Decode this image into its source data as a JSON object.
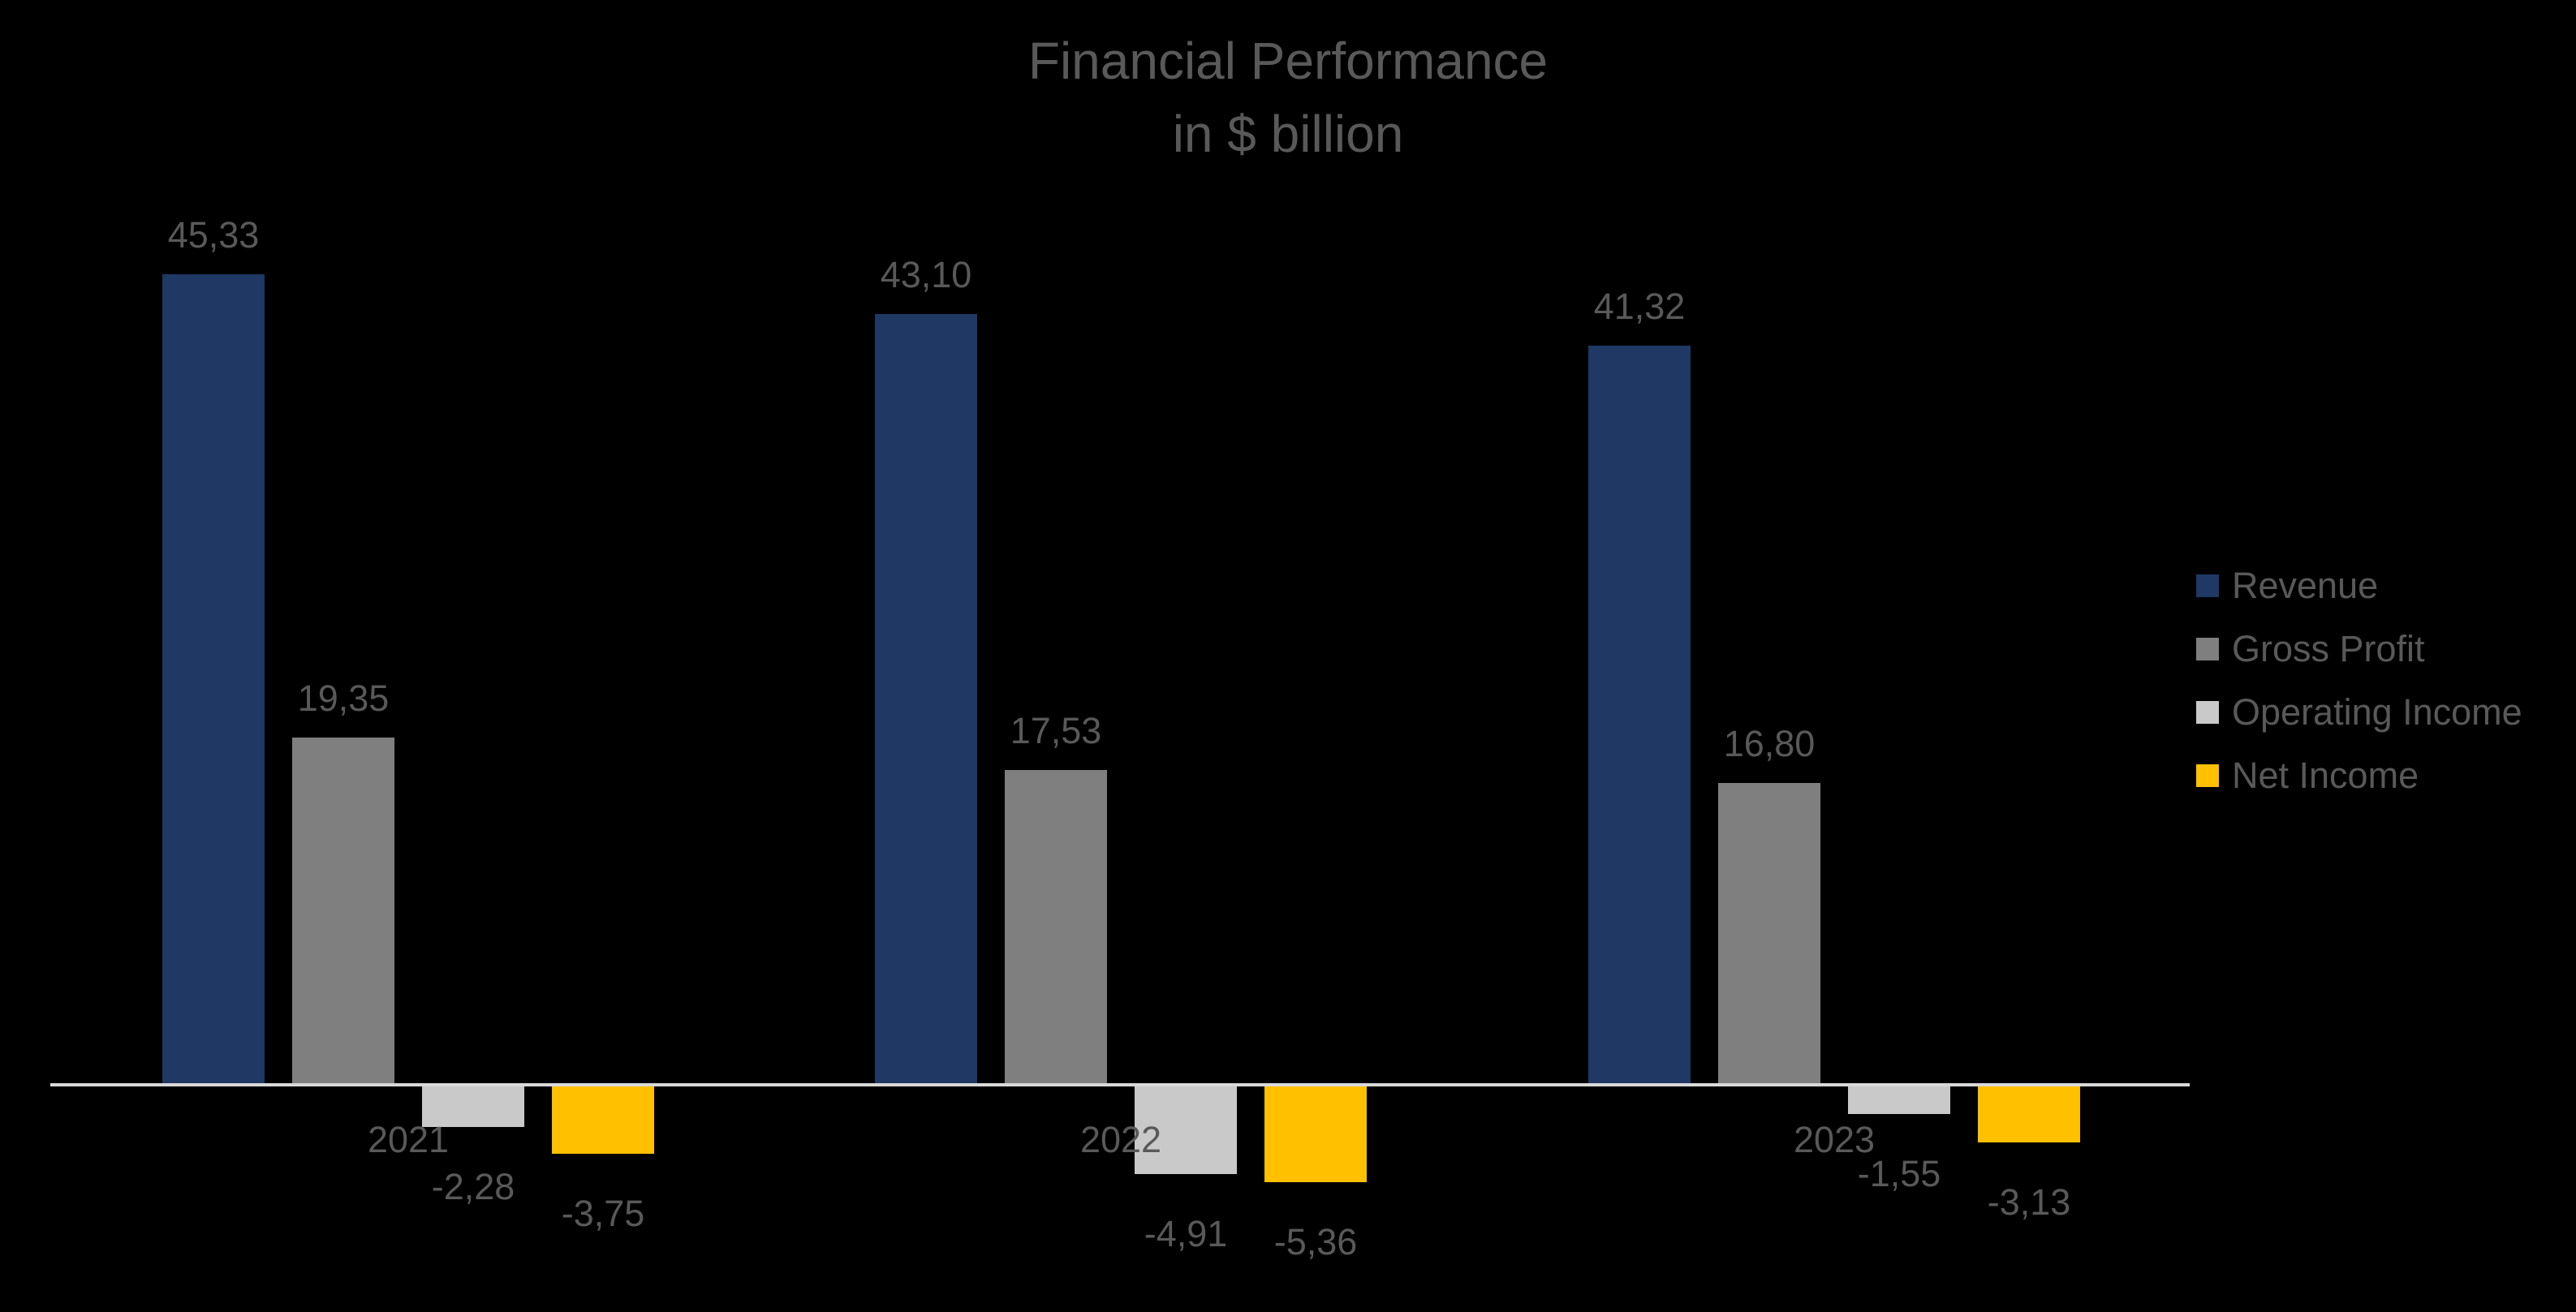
{
  "title": {
    "line1": "Financial Performance",
    "line2": "in $ billion"
  },
  "colors": {
    "background": "#000000",
    "text": "#595959",
    "axis_line": "#D9D9D9"
  },
  "chart_data": {
    "type": "bar",
    "title": "Financial Performance",
    "subtitle": "in $ billion",
    "categories": [
      "2021",
      "2022",
      "2023"
    ],
    "series": [
      {
        "name": "Revenue",
        "color": "#1F3864",
        "values": [
          45.33,
          43.1,
          41.32
        ]
      },
      {
        "name": "Gross Profit",
        "color": "#7F7F7F",
        "values": [
          19.35,
          17.53,
          16.8
        ]
      },
      {
        "name": "Operating Income",
        "color": "#C9C9C9",
        "values": [
          -2.28,
          -4.91,
          -1.55
        ]
      },
      {
        "name": "Net Income",
        "color": "#FFC000",
        "values": [
          -3.75,
          -5.36,
          -3.13
        ]
      }
    ],
    "data_labels": {
      "2021": [
        "45,33",
        "19,35",
        "-2,28",
        "-3,75"
      ],
      "2022": [
        "43,10",
        "17,53",
        "-4,91",
        "-5,36"
      ],
      "2023": [
        "41,32",
        "16,80",
        "-1,55",
        "-3,13"
      ]
    },
    "decimal_separator": ",",
    "xlabel": "",
    "ylabel": "",
    "ylim": [
      -6,
      46
    ],
    "grid": false,
    "axis_labels_visible": false,
    "legend_position": "right",
    "legend_entries": [
      "Revenue",
      "Gross Profit",
      "Operating Income",
      "Net Income"
    ]
  }
}
